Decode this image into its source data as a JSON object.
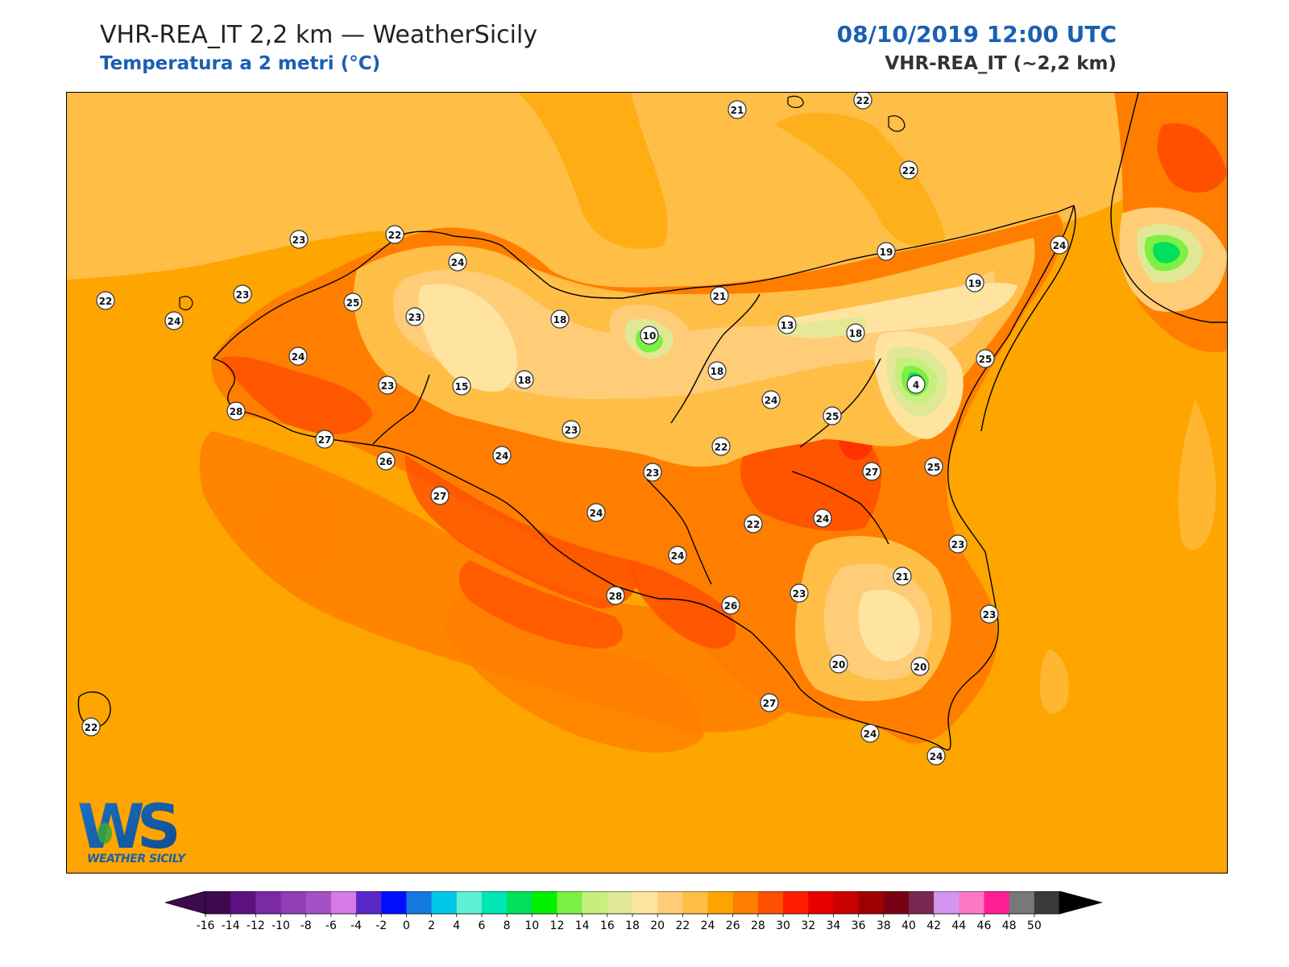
{
  "header": {
    "title": "VHR-REA_IT 2,2 km — WeatherSicily",
    "subtitle": "Temperatura a 2 metri (°C)",
    "datetime": "08/10/2019 12:00 UTC",
    "model": "VHR-REA_IT (~2,2 km)"
  },
  "logo": {
    "mark": "WS",
    "caption": "WEATHER SICILY"
  },
  "colorbar": {
    "ticks": [
      "-16",
      "-14",
      "-12",
      "-10",
      "-8",
      "-6",
      "-4",
      "-2",
      "0",
      "2",
      "4",
      "6",
      "8",
      "10",
      "12",
      "14",
      "16",
      "18",
      "20",
      "22",
      "24",
      "26",
      "28",
      "30",
      "32",
      "34",
      "36",
      "38",
      "40",
      "42",
      "44",
      "46",
      "48",
      "50"
    ],
    "colors": [
      "#3d0a4d",
      "#5e1282",
      "#7a2aa3",
      "#8f3fb3",
      "#a550c4",
      "#d57ae6",
      "#5a28c7",
      "#0010ff",
      "#1478e0",
      "#00c8e6",
      "#5ef0d4",
      "#00e6b4",
      "#00e05a",
      "#00f000",
      "#7cf044",
      "#c6f07e",
      "#e0e896",
      "#ffe4a0",
      "#ffcc78",
      "#ffbe46",
      "#fea500",
      "#ff7e00",
      "#ff5000",
      "#ff1e00",
      "#e60000",
      "#c80000",
      "#a00000",
      "#780014",
      "#782850",
      "#d296f0",
      "#ff78c8",
      "#ff1e96",
      "#787878",
      "#3a3a3a"
    ]
  },
  "stations": [
    {
      "v": "21"
    },
    {
      "v": "22"
    },
    {
      "v": "22"
    },
    {
      "v": "23"
    },
    {
      "v": "22"
    },
    {
      "v": "24"
    },
    {
      "v": "24"
    },
    {
      "v": "19"
    },
    {
      "v": "19"
    },
    {
      "v": "22"
    },
    {
      "v": "24"
    },
    {
      "v": "23"
    },
    {
      "v": "25"
    },
    {
      "v": "23"
    },
    {
      "v": "18"
    },
    {
      "v": "21"
    },
    {
      "v": "10"
    },
    {
      "v": "13"
    },
    {
      "v": "18"
    },
    {
      "v": "25"
    },
    {
      "v": "24"
    },
    {
      "v": "23"
    },
    {
      "v": "15"
    },
    {
      "v": "18"
    },
    {
      "v": "18"
    },
    {
      "v": "4"
    },
    {
      "v": "24"
    },
    {
      "v": "28"
    },
    {
      "v": "25"
    },
    {
      "v": "27"
    },
    {
      "v": "23"
    },
    {
      "v": "22"
    },
    {
      "v": "26"
    },
    {
      "v": "24"
    },
    {
      "v": "27"
    },
    {
      "v": "25"
    },
    {
      "v": "23"
    },
    {
      "v": "27"
    },
    {
      "v": "24"
    },
    {
      "v": "22"
    },
    {
      "v": "24"
    },
    {
      "v": "23"
    },
    {
      "v": "24"
    },
    {
      "v": "21"
    },
    {
      "v": "28"
    },
    {
      "v": "26"
    },
    {
      "v": "23"
    },
    {
      "v": "23"
    },
    {
      "v": "20"
    },
    {
      "v": "20"
    },
    {
      "v": "27"
    },
    {
      "v": "24"
    },
    {
      "v": "22"
    },
    {
      "v": "24"
    }
  ]
}
